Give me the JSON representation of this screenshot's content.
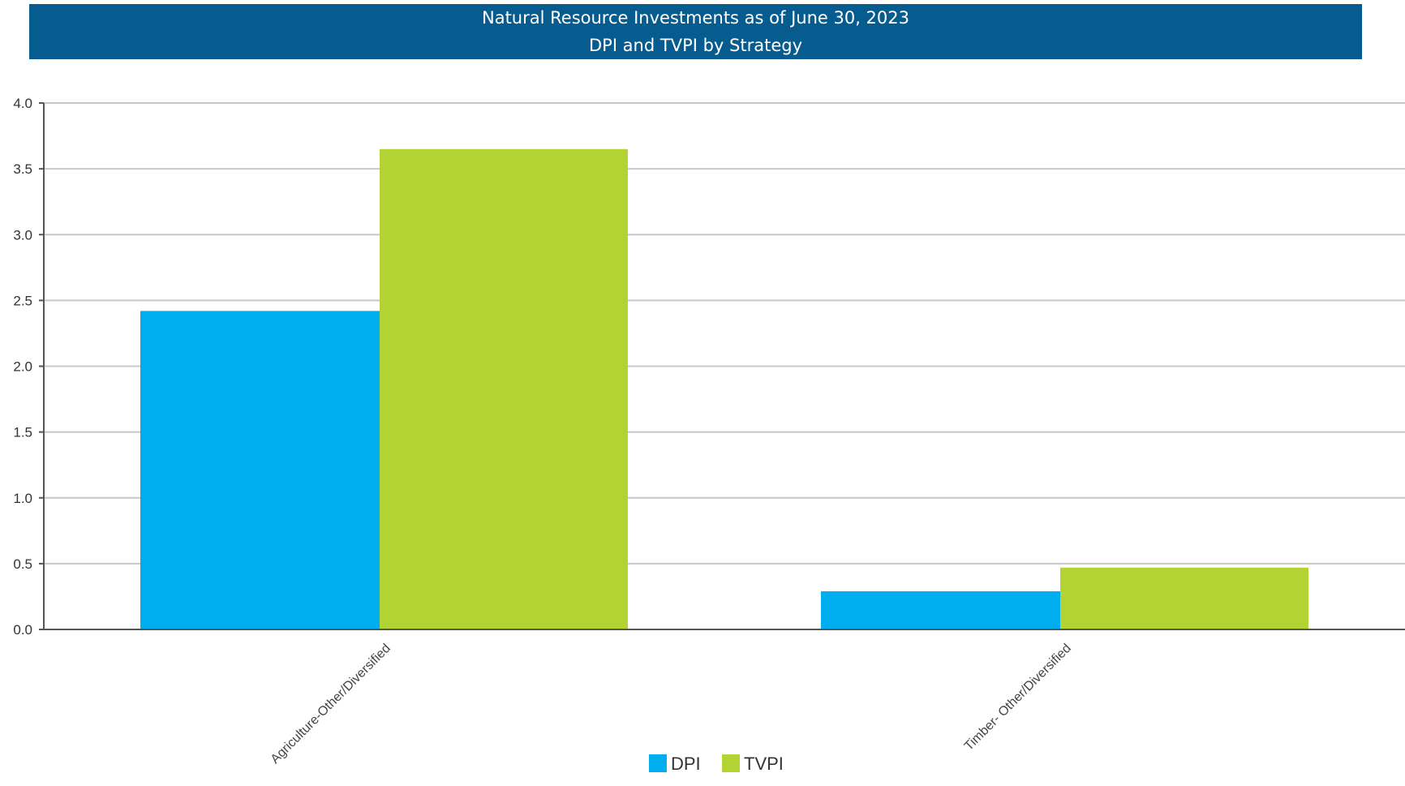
{
  "header": {
    "title_line1": "Natural Resource Investments as of June 30, 2023",
    "title_line2": "DPI and TVPI by Strategy",
    "background": "#075c8f"
  },
  "chart_data": {
    "type": "bar",
    "title": "Natural Resource Investments as of June 30, 2023",
    "subtitle": "DPI and TVPI by Strategy",
    "categories": [
      "Agriculture-Other/Diversified",
      "Timber- Other/Diversified"
    ],
    "series": [
      {
        "name": "DPI",
        "values": [
          2.42,
          0.29
        ],
        "color": "#00aeef"
      },
      {
        "name": "TVPI",
        "values": [
          3.65,
          0.47
        ],
        "color": "#b3d334"
      }
    ],
    "y_ticks": [
      "0.0",
      "0.5",
      "1.0",
      "1.5",
      "2.0",
      "2.5",
      "3.0",
      "3.5",
      "4.0"
    ],
    "ylim": [
      0,
      4.0
    ],
    "xlabel": "",
    "ylabel": "",
    "grid": true,
    "legend_position": "bottom-center"
  }
}
